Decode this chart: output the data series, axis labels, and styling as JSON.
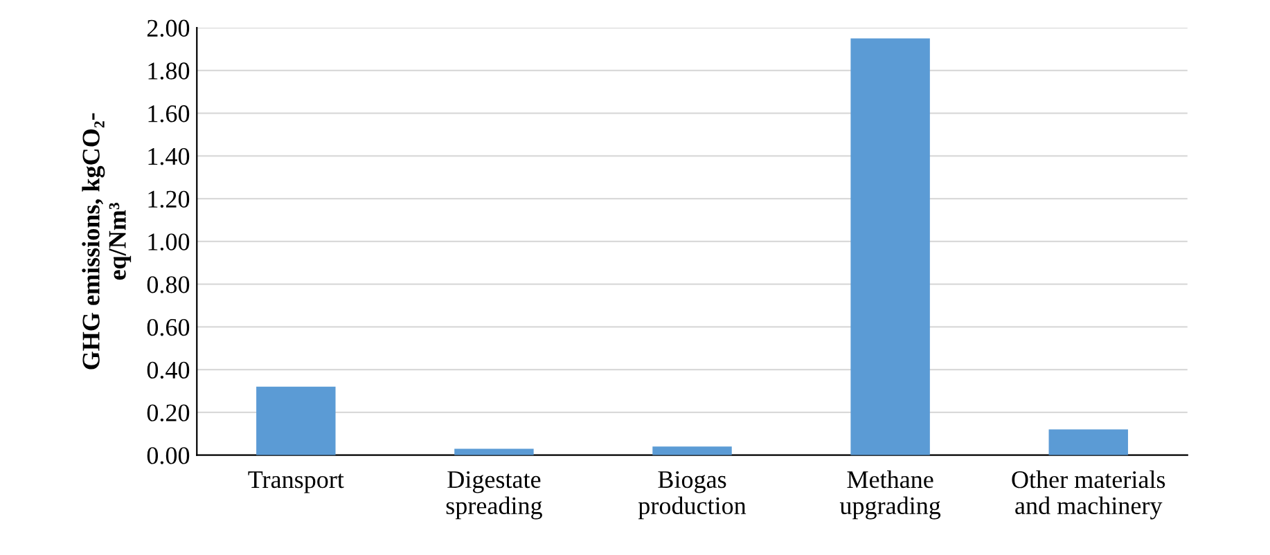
{
  "chart_data": {
    "type": "bar",
    "ylabel": "GHG emissions, kgCO₂-\neq/Nm³",
    "categories": [
      "Transport",
      "Digestate\nspreading",
      "Biogas\nproduction",
      "Methane\nupgrading",
      "Other materials\nand machinery"
    ],
    "values": [
      0.32,
      0.03,
      0.04,
      1.95,
      0.12
    ],
    "color": "#5b9bd5",
    "ylim": [
      0,
      2.0
    ],
    "yticks": [
      {
        "value": 0,
        "label": "0.00"
      },
      {
        "value": 0.2,
        "label": "0.20"
      },
      {
        "value": 0.4,
        "label": "0.40"
      },
      {
        "value": 0.6,
        "label": "0.60"
      },
      {
        "value": 0.8,
        "label": "0.80"
      },
      {
        "value": 1.0,
        "label": "1.00"
      },
      {
        "value": 1.2,
        "label": "1.20"
      },
      {
        "value": 1.4,
        "label": "1.40"
      },
      {
        "value": 1.6,
        "label": "1.60"
      },
      {
        "value": 1.8,
        "label": "1.80"
      },
      {
        "value": 2.0,
        "label": "2.00"
      }
    ],
    "grid": "y"
  }
}
